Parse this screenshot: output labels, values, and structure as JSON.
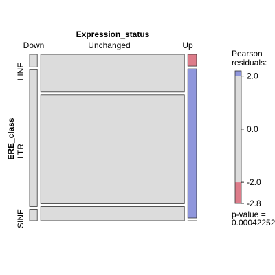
{
  "chart_data": {
    "type": "mosaic",
    "title": "Expression_status",
    "xlabel": "Expression_status",
    "ylabel": "ERE_class",
    "columns": [
      "Down",
      "Unchanged",
      "Up"
    ],
    "rows": [
      "LINE",
      "LTR",
      "SINE"
    ],
    "column_fractions": [
      0.048,
      0.897,
      0.055
    ],
    "row_fractions": {
      "Down": [
        0.078,
        0.851,
        0.071
      ],
      "Unchanged": [
        0.234,
        0.678,
        0.088
      ],
      "Up": [
        0.073,
        0.927,
        0.0
      ]
    },
    "residual_shading": {
      "Down": [
        "neutral",
        "neutral",
        "neutral"
      ],
      "Unchanged": [
        "neutral",
        "neutral",
        "neutral"
      ],
      "Up": [
        "negative",
        "positive",
        "neutral"
      ]
    },
    "legend": {
      "title_line1": "Pearson",
      "title_line2": "residuals:",
      "ticks": [
        "2.0",
        "0.0",
        "-2.0",
        "-2.8"
      ],
      "tick_values": [
        2.0,
        0.0,
        -2.0,
        -2.8
      ],
      "range": [
        -2.8,
        2.2
      ],
      "positive_color": "#8f96dc",
      "negative_color": "#dd7c8a",
      "neutral_color": "#dcdcdc",
      "pvalue_label": "p-value =",
      "pvalue": "0.00042252"
    }
  }
}
